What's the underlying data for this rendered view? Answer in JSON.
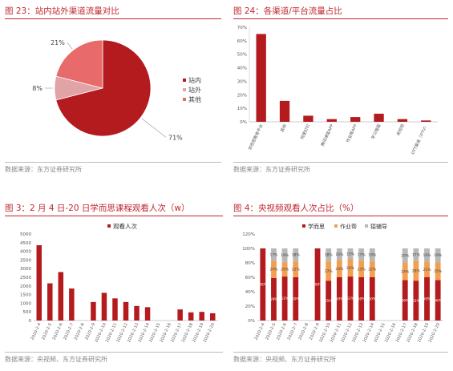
{
  "panels": [
    {
      "title": "图 23：站内站外渠道流量对比",
      "source": "数据来源：东方证券研究所"
    },
    {
      "title": "图 24：各渠道/平台流量占比",
      "source": "数据来源：东方证券研究所"
    },
    {
      "title": "图 3：2 月 4 日-20 日学而思课程观看人次（w）",
      "source": "数据来源：央视频、东方证券研究所"
    },
    {
      "title": "图 4：央视频观看人次占比（%）",
      "source": "数据来源：央视频、东方证券研究所"
    }
  ],
  "colors": {
    "dark_red": "#b31b1e",
    "pink": "#e0a3a6",
    "salmon": "#e86a6a",
    "orange": "#f0a050",
    "gray": "#b8b8b8",
    "title_red": "#c0262d"
  },
  "chart_data": [
    {
      "type": "pie",
      "labels": [
        "站内",
        "站外",
        "其他"
      ],
      "values": [
        71,
        8,
        21
      ],
      "value_labels": [
        "71%",
        "8%",
        "21%"
      ],
      "legend": "right"
    },
    {
      "type": "bar",
      "categories": [
        "学而思教育平台",
        "其他",
        "阿里钉钉",
        "腾讯课堂APP",
        "作业帮APP",
        "学习强国",
        "央视频",
        "OTT渠道（IPTV）"
      ],
      "values": [
        65,
        15.5,
        4.5,
        2,
        3.5,
        6,
        2,
        1
      ],
      "ylim": [
        0,
        70
      ],
      "yticks": [
        "0%",
        "10%",
        "20%",
        "30%",
        "40%",
        "50%",
        "60%",
        "70%"
      ]
    },
    {
      "type": "bar",
      "categories": [
        "2020-2-4",
        "2020-2-5",
        "2020-2-6",
        "2020-2-7",
        "2020-2-8",
        "2020-2-9",
        "2020-2-10",
        "2020-2-11",
        "2020-2-12",
        "2020-2-13",
        "2020-2-14",
        "2020-2-15",
        "2020-2-16",
        "2020-2-17",
        "2020-2-18",
        "2020-2-19",
        "2020-2-20"
      ],
      "series": [
        {
          "name": "观看人次",
          "values": [
            4350,
            2150,
            2800,
            1850,
            0,
            1070,
            1600,
            1280,
            1070,
            840,
            770,
            0,
            0,
            640,
            470,
            500,
            420
          ]
        }
      ],
      "ylim": [
        0,
        5000
      ],
      "yticks": [
        "0",
        "500",
        "1000",
        "1500",
        "2000",
        "2500",
        "3000",
        "3500",
        "4000",
        "4500",
        "5000"
      ],
      "legend": "top"
    },
    {
      "type": "bar",
      "stacked": true,
      "categories": [
        "2020-2-4",
        "2020-2-5",
        "2020-2-6",
        "2020-2-7",
        "2020-2-8",
        "2020-2-9",
        "2020-2-10",
        "2020-2-11",
        "2020-2-12",
        "2020-2-13",
        "2020-2-14",
        "2020-2-15",
        "2020-2-16",
        "2020-2-17",
        "2020-2-18",
        "2020-2-19",
        "2020-2-20"
      ],
      "series": [
        {
          "name": "学而思",
          "values": [
            100,
            59,
            61,
            60,
            0,
            100,
            55,
            60,
            61,
            60,
            60,
            0,
            0,
            56,
            55,
            60,
            56
          ]
        },
        {
          "name": "作业帮",
          "values": [
            0,
            24,
            20,
            22,
            0,
            0,
            27,
            24,
            24,
            23,
            22,
            0,
            0,
            24,
            28,
            21,
            25
          ]
        },
        {
          "name": "猿辅导",
          "values": [
            0,
            17,
            19,
            18,
            0,
            0,
            18,
            16,
            15,
            17,
            18,
            0,
            0,
            20,
            17,
            19,
            19
          ]
        }
      ],
      "value_labels": [
        [
          "100%",
          "",
          ""
        ],
        [
          "59%",
          "24%",
          "17%"
        ],
        [
          "61%",
          "20%",
          "19%"
        ],
        [
          "60%",
          "22%",
          "18%"
        ],
        [
          "",
          "",
          ""
        ],
        [
          "100%",
          "",
          ""
        ],
        [
          "55%",
          "27%",
          "18%"
        ],
        [
          "60%",
          "24%",
          "16%"
        ],
        [
          "61%",
          "24%",
          "15%"
        ],
        [
          "60%",
          "23%",
          "17%"
        ],
        [
          "60%",
          "22%",
          "18%"
        ],
        [
          "",
          "",
          ""
        ],
        [
          "",
          "",
          ""
        ],
        [
          "56%",
          "24%",
          "20%"
        ],
        [
          "55%",
          "28%",
          "17%"
        ],
        [
          "60%",
          "21%",
          "19%"
        ],
        [
          "56%",
          "25%",
          "19%"
        ]
      ],
      "ylim": [
        0,
        120
      ],
      "yticks": [
        "0%",
        "20%",
        "40%",
        "60%",
        "80%",
        "100%",
        "120%"
      ],
      "legend": "top"
    }
  ]
}
